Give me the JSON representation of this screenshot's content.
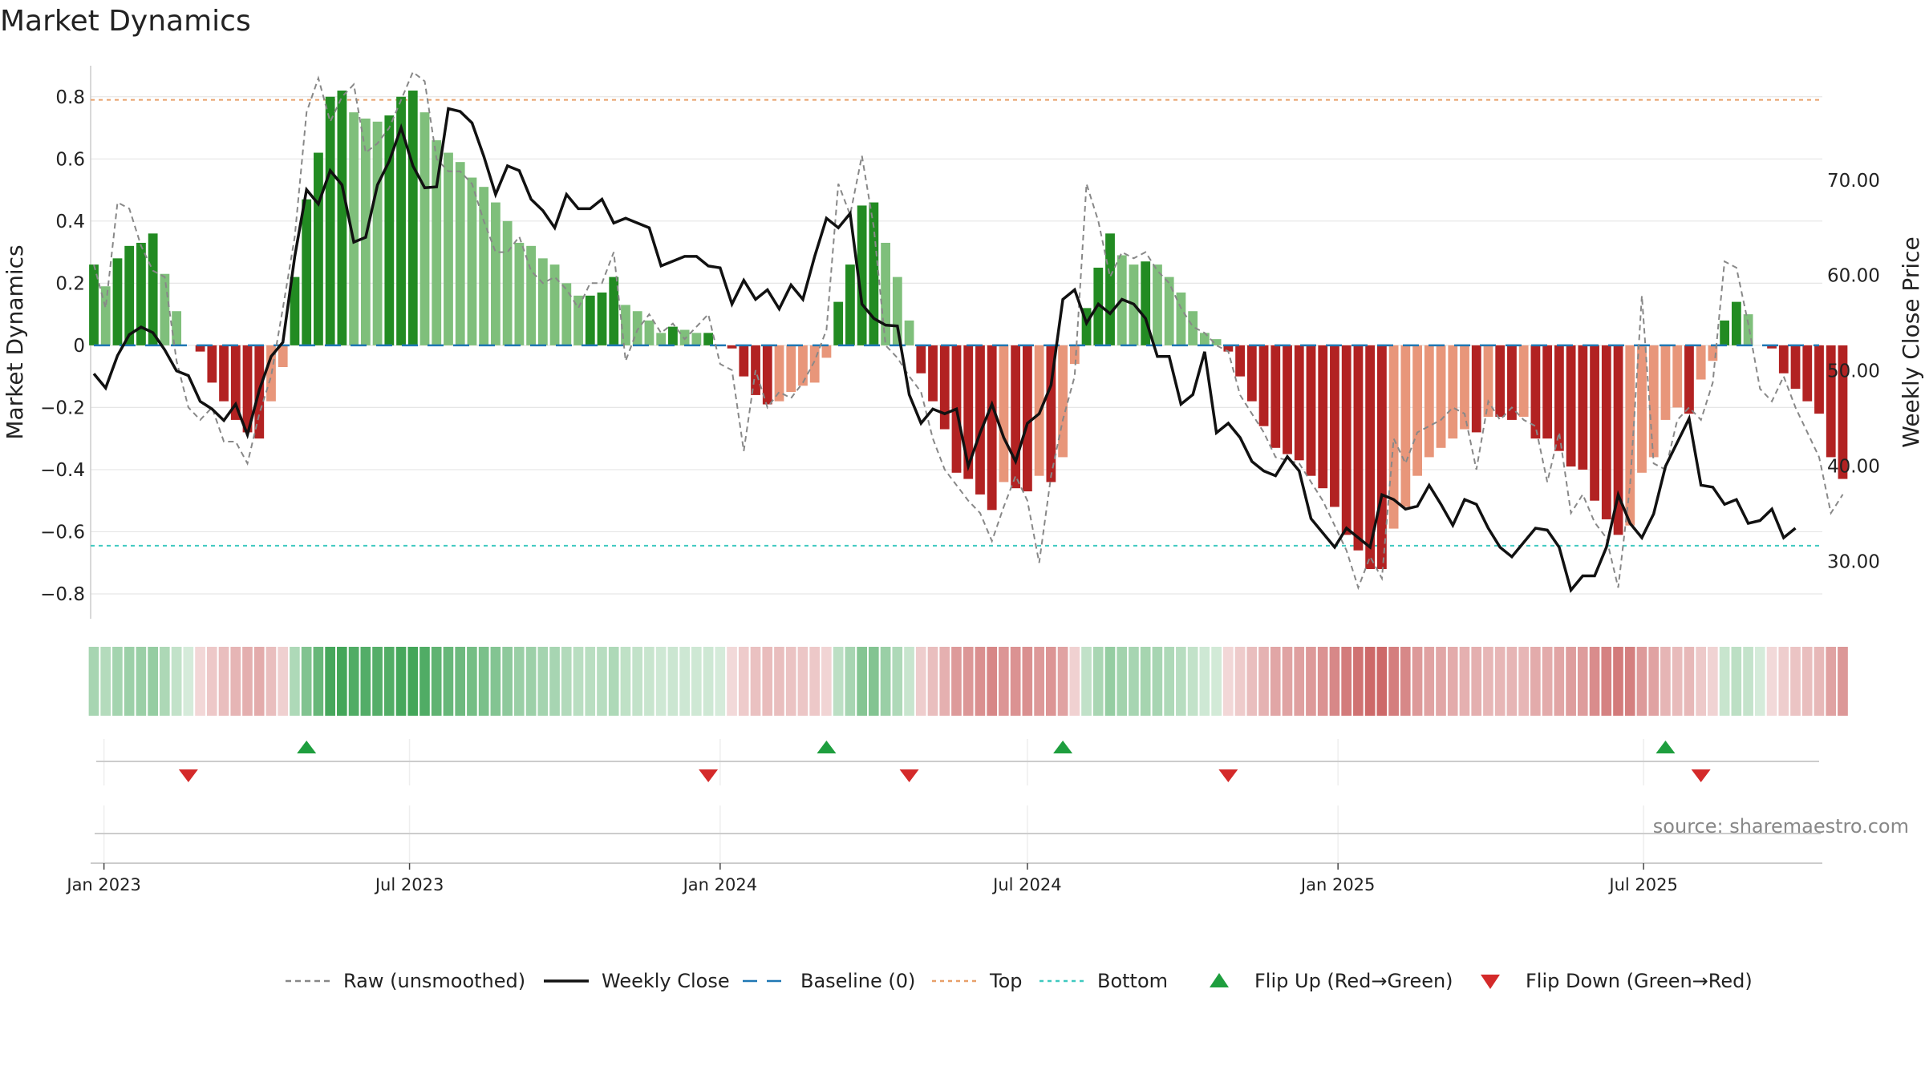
{
  "chart_data": {
    "type": "bar",
    "title": "Market Dynamics",
    "ylabel": "Market Dynamics",
    "ylabel_right": "Weekly Close Price",
    "ylim": [
      -0.88,
      0.9
    ],
    "ylim_right": [
      24.0,
      82.0
    ],
    "yticks": [
      -0.8,
      -0.6,
      -0.4,
      -0.2,
      0,
      0.2,
      0.4,
      0.6,
      0.8
    ],
    "ytick_labels": [
      "−0.8",
      "−0.6",
      "−0.4",
      "−0.2",
      "0",
      "0.2",
      "0.4",
      "0.6",
      "0.8"
    ],
    "yticks_right": [
      30,
      40,
      50,
      60,
      70
    ],
    "ytick_labels_right": [
      "30.00",
      "40.00",
      "50.00",
      "60.00",
      "70.00"
    ],
    "x_start": "2022-12-26",
    "x_end": "2025-10-13",
    "date_ticks": [
      {
        "date": "2023-01-01",
        "label": "Jan 2023"
      },
      {
        "date": "2023-07-01",
        "label": "Jul 2023"
      },
      {
        "date": "2024-01-01",
        "label": "Jan 2024"
      },
      {
        "date": "2024-07-01",
        "label": "Jul 2024"
      },
      {
        "date": "2025-01-01",
        "label": "Jan 2025"
      },
      {
        "date": "2025-07-01",
        "label": "Jul 2025"
      }
    ],
    "grid": true,
    "top_line": 0.79,
    "bottom_line": -0.645,
    "baseline": 0,
    "weeks_start": "2022-12-26",
    "dynamics": [
      0.26,
      0.19,
      0.28,
      0.32,
      0.33,
      0.36,
      0.23,
      0.11,
      0,
      -0.02,
      -0.12,
      -0.18,
      -0.24,
      -0.28,
      -0.3,
      -0.18,
      -0.07,
      0.22,
      0.47,
      0.62,
      0.8,
      0.82,
      0.75,
      0.73,
      0.72,
      0.74,
      0.8,
      0.82,
      0.75,
      0.66,
      0.62,
      0.59,
      0.54,
      0.51,
      0.46,
      0.4,
      0.33,
      0.32,
      0.28,
      0.26,
      0.2,
      0.16,
      0.16,
      0.17,
      0.22,
      0.13,
      0.11,
      0.08,
      0.04,
      0.06,
      0.05,
      0.04,
      0.04,
      0,
      -0.01,
      -0.1,
      -0.16,
      -0.19,
      -0.18,
      -0.15,
      -0.13,
      -0.12,
      -0.04,
      0.14,
      0.26,
      0.45,
      0.46,
      0.33,
      0.22,
      0.08,
      -0.09,
      -0.18,
      -0.27,
      -0.41,
      -0.43,
      -0.48,
      -0.53,
      -0.44,
      -0.46,
      -0.47,
      -0.42,
      -0.44,
      -0.36,
      -0.06,
      0.12,
      0.25,
      0.36,
      0.29,
      0.26,
      0.27,
      0.26,
      0.22,
      0.17,
      0.11,
      0.04,
      0.02,
      -0.02,
      -0.1,
      -0.18,
      -0.26,
      -0.33,
      -0.35,
      -0.37,
      -0.42,
      -0.46,
      -0.52,
      -0.61,
      -0.66,
      -0.72,
      -0.72,
      -0.59,
      -0.52,
      -0.42,
      -0.36,
      -0.33,
      -0.3,
      -0.27,
      -0.28,
      -0.23,
      -0.23,
      -0.24,
      -0.23,
      -0.3,
      -0.3,
      -0.34,
      -0.39,
      -0.4,
      -0.5,
      -0.56,
      -0.61,
      -0.58,
      -0.41,
      -0.36,
      -0.24,
      -0.2,
      -0.22,
      -0.11,
      -0.05,
      0.08,
      0.14,
      0.1,
      0,
      -0.01,
      -0.09,
      -0.14,
      -0.18,
      -0.22,
      -0.36,
      -0.43
    ],
    "raw": [
      0.26,
      0.12,
      0.46,
      0.44,
      0.32,
      0.24,
      0.22,
      -0.05,
      -0.2,
      -0.24,
      -0.2,
      -0.31,
      -0.31,
      -0.38,
      -0.22,
      -0.1,
      0.12,
      0.35,
      0.75,
      0.86,
      0.72,
      0.8,
      0.84,
      0.62,
      0.65,
      0.7,
      0.79,
      0.88,
      0.85,
      0.6,
      0.56,
      0.56,
      0.52,
      0.4,
      0.3,
      0.3,
      0.35,
      0.24,
      0.2,
      0.22,
      0.18,
      0.12,
      0.2,
      0.2,
      0.3,
      -0.05,
      0.05,
      0.1,
      0.04,
      0.07,
      0.02,
      0.06,
      0.1,
      -0.06,
      -0.08,
      -0.34,
      -0.08,
      -0.2,
      -0.15,
      -0.17,
      -0.12,
      -0.05,
      0.05,
      0.52,
      0.42,
      0.61,
      0.38,
      0.0,
      -0.04,
      -0.1,
      -0.15,
      -0.3,
      -0.4,
      -0.45,
      -0.5,
      -0.54,
      -0.63,
      -0.52,
      -0.42,
      -0.5,
      -0.7,
      -0.42,
      -0.24,
      -0.1,
      0.52,
      0.4,
      0.22,
      0.3,
      0.28,
      0.3,
      0.24,
      0.2,
      0.12,
      0.06,
      0.04,
      0.0,
      -0.02,
      -0.16,
      -0.22,
      -0.28,
      -0.36,
      -0.37,
      -0.38,
      -0.44,
      -0.5,
      -0.58,
      -0.66,
      -0.78,
      -0.68,
      -0.75,
      -0.3,
      -0.38,
      -0.28,
      -0.26,
      -0.24,
      -0.2,
      -0.22,
      -0.4,
      -0.18,
      -0.24,
      -0.2,
      -0.24,
      -0.26,
      -0.44,
      -0.28,
      -0.54,
      -0.48,
      -0.57,
      -0.62,
      -0.78,
      -0.45,
      0.16,
      -0.38,
      -0.4,
      -0.24,
      -0.2,
      -0.24,
      -0.12,
      0.27,
      0.25,
      0.07,
      -0.14,
      -0.18,
      -0.1,
      -0.2,
      -0.28,
      -0.36,
      -0.54,
      -0.48
    ],
    "close": [
      49.7,
      48.2,
      51.6,
      53.8,
      54.6,
      54.0,
      52.2,
      50.0,
      49.5,
      46.8,
      46.0,
      44.8,
      46.5,
      43.3,
      48.0,
      51.5,
      53.0,
      62.0,
      69.0,
      67.5,
      71.0,
      69.5,
      63.5,
      64.0,
      69.5,
      72.0,
      75.5,
      71.5,
      69.2,
      69.3,
      77.5,
      77.2,
      76.0,
      72.5,
      68.5,
      71.5,
      71.0,
      68.0,
      66.8,
      65.0,
      68.5,
      67.0,
      67.0,
      68.0,
      65.5,
      66.0,
      65.5,
      65.0,
      61.0,
      61.5,
      62.0,
      62.0,
      61.0,
      60.8,
      57.0,
      59.5,
      57.5,
      58.5,
      56.5,
      59.0,
      57.5,
      62.0,
      66.0,
      65.0,
      66.5,
      57.0,
      55.5,
      54.8,
      54.7,
      47.5,
      44.5,
      46.0,
      45.5,
      46.0,
      40.0,
      43.5,
      46.5,
      43.0,
      40.5,
      44.5,
      45.5,
      48.5,
      57.5,
      58.5,
      55.0,
      57.0,
      56.0,
      57.5,
      57.0,
      55.5,
      51.5,
      51.5,
      46.5,
      47.5,
      52.0,
      43.5,
      44.5,
      43.0,
      40.5,
      39.5,
      39.0,
      41.0,
      39.5,
      34.5,
      33.0,
      31.5,
      33.5,
      32.5,
      31.5,
      37.0,
      36.5,
      35.5,
      35.8,
      38.0,
      36.0,
      33.8,
      36.5,
      36.0,
      33.5,
      31.5,
      30.5,
      32.0,
      33.5,
      33.3,
      31.5,
      27.0,
      28.5,
      28.5,
      31.5,
      37.0,
      34.0,
      32.5,
      35.0,
      40.0,
      42.5,
      45.0,
      38.0,
      37.8,
      36.0,
      36.5,
      34.0,
      34.3,
      35.5,
      32.5,
      33.5
    ],
    "flip_up_dates": [
      "2023-05-01",
      "2024-03-04",
      "2024-07-22",
      "2025-07-14"
    ],
    "flip_down_dates": [
      "2023-02-20",
      "2023-12-25",
      "2024-04-22",
      "2024-10-28",
      "2025-08-04"
    ],
    "legend": [
      {
        "label": "Raw (unsmoothed)",
        "kind": "dashed-line",
        "color": "#888888"
      },
      {
        "label": "Weekly Close",
        "kind": "solid-line",
        "color": "#111111"
      },
      {
        "label": "Baseline (0)",
        "kind": "dashed-line",
        "color": "#1f77b4"
      },
      {
        "label": "Top",
        "kind": "dotted-line",
        "color": "#e8a06a"
      },
      {
        "label": "Bottom",
        "kind": "dotted-line",
        "color": "#3fc9c0"
      },
      {
        "label": "Flip Up (Red→Green)",
        "kind": "triangle-up",
        "color": "#1e9e3e"
      },
      {
        "label": "Flip Down (Green→Red)",
        "kind": "triangle-down",
        "color": "#d42a2a"
      }
    ],
    "legend_position": "bottom-center",
    "colors": {
      "strong_green": "#228b22",
      "light_green": "#7fbf7b",
      "strong_red": "#b22222",
      "light_red": "#e8967a",
      "top": "#e8a06a",
      "bottom": "#3fc9c0",
      "baseline": "#1f77b4"
    },
    "source": "source: sharemaestro.com"
  }
}
